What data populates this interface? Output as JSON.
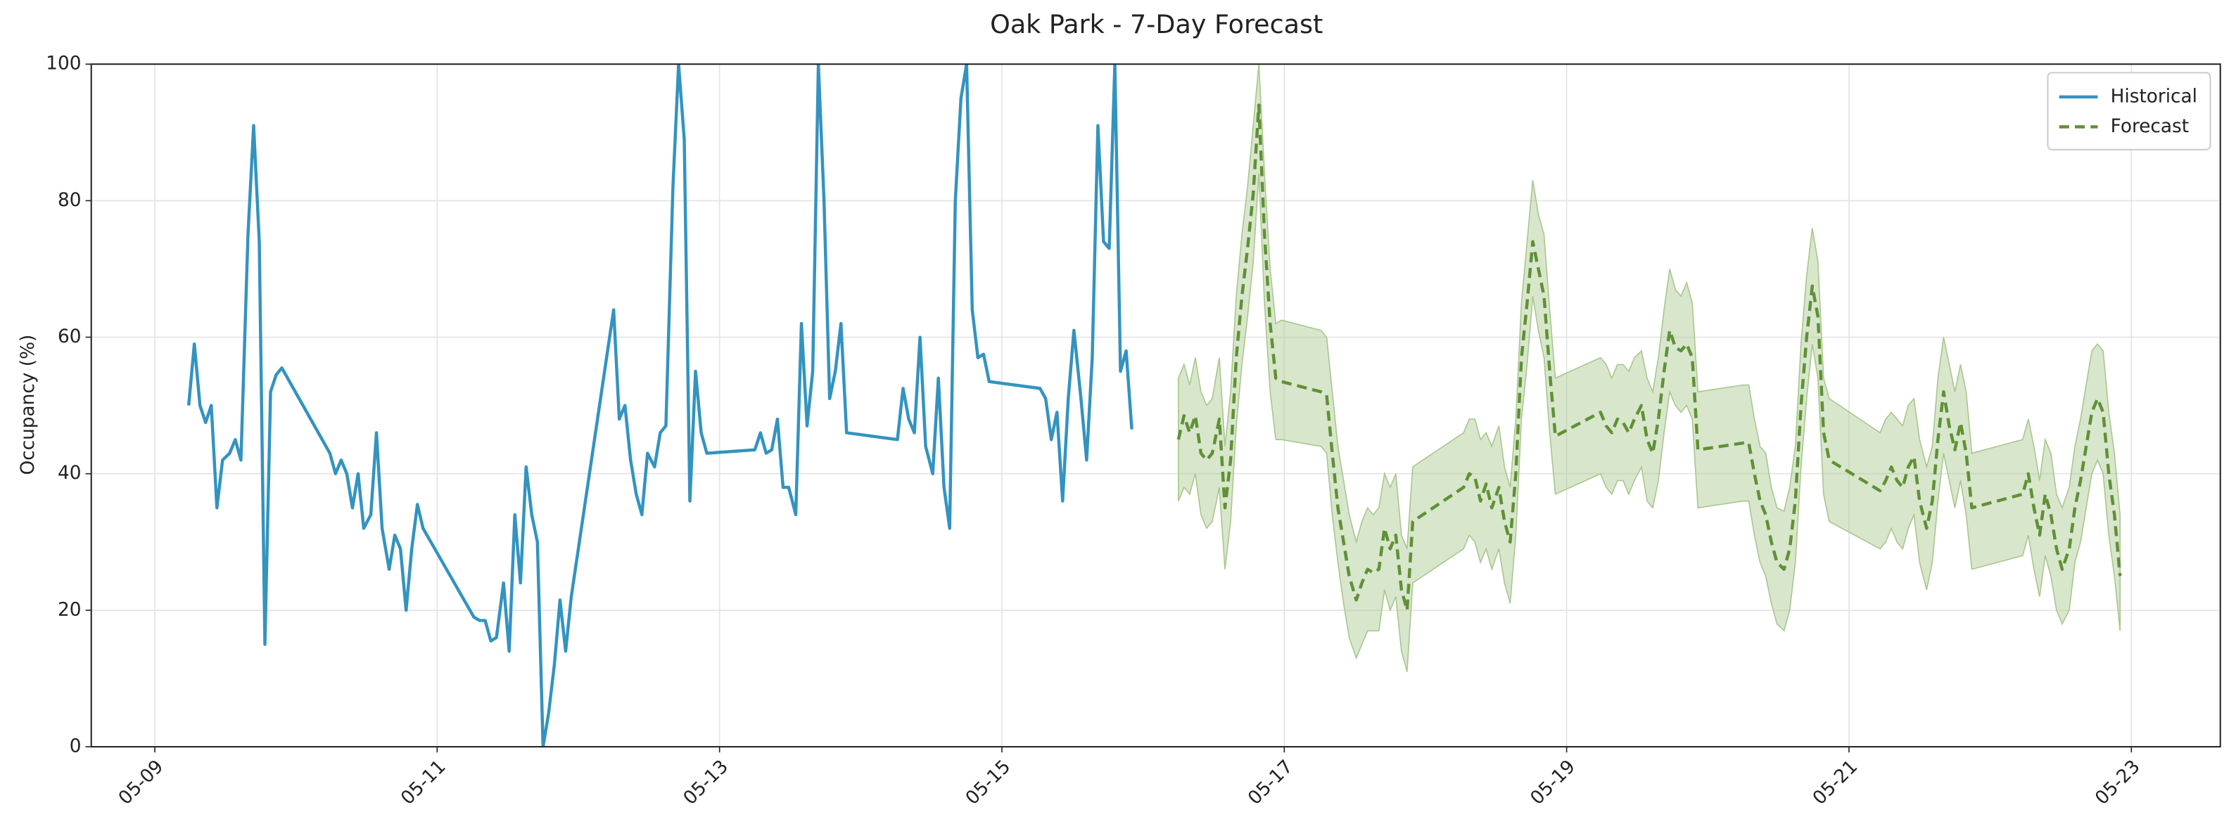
{
  "chart_data": {
    "type": "line",
    "title": "Oak Park - 7-Day Forecast",
    "y_label": "Occupancy (%)",
    "grid": true,
    "legend": "upper right",
    "xlim": [
      8.55,
      23.63
    ],
    "xticks": [
      {
        "value": 9,
        "label": "05-09"
      },
      {
        "value": 11,
        "label": "05-11"
      },
      {
        "value": 13,
        "label": "05-13"
      },
      {
        "value": 15,
        "label": "05-15"
      },
      {
        "value": 17,
        "label": "05-17"
      },
      {
        "value": 19,
        "label": "05-19"
      },
      {
        "value": 21,
        "label": "05-21"
      },
      {
        "value": 23,
        "label": "05-23"
      }
    ],
    "ylim": [
      0,
      100
    ],
    "yticks": [
      0,
      20,
      40,
      60,
      80,
      100
    ],
    "series": [
      {
        "name": "Historical",
        "color": "#3393c0",
        "linestyle": "solid",
        "x": [
          9.24,
          9.28,
          9.32,
          9.36,
          9.4,
          9.44,
          9.48,
          9.53,
          9.57,
          9.61,
          9.66,
          9.7,
          9.74,
          9.78,
          9.82,
          9.86,
          9.9,
          10.24,
          10.28,
          10.32,
          10.36,
          10.4,
          10.44,
          10.48,
          10.53,
          10.57,
          10.61,
          10.66,
          10.7,
          10.74,
          10.78,
          10.82,
          10.86,
          10.9,
          11.26,
          11.3,
          11.34,
          11.38,
          11.42,
          11.47,
          11.51,
          11.55,
          11.59,
          11.63,
          11.67,
          11.71,
          11.75,
          11.79,
          11.83,
          11.87,
          11.91,
          11.95,
          12.25,
          12.29,
          12.33,
          12.37,
          12.41,
          12.45,
          12.49,
          12.54,
          12.58,
          12.62,
          12.67,
          12.71,
          12.75,
          12.79,
          12.83,
          12.87,
          12.91,
          13.25,
          13.29,
          13.33,
          13.37,
          13.41,
          13.45,
          13.49,
          13.54,
          13.58,
          13.62,
          13.66,
          13.7,
          13.74,
          13.78,
          13.82,
          13.86,
          13.9,
          14.26,
          14.3,
          14.34,
          14.38,
          14.42,
          14.46,
          14.51,
          14.55,
          14.59,
          14.63,
          14.67,
          14.71,
          14.75,
          14.79,
          14.83,
          14.87,
          14.91,
          15.27,
          15.31,
          15.35,
          15.39,
          15.43,
          15.47,
          15.51,
          15.56,
          15.6,
          15.64,
          15.68,
          15.72,
          15.76,
          15.8,
          15.84,
          15.88,
          15.92
        ],
        "values": [
          50,
          59,
          50,
          47.5,
          50,
          35,
          42,
          43,
          45,
          42,
          75,
          91,
          74,
          15,
          52,
          54.5,
          55.5,
          43,
          40,
          42,
          40,
          35,
          40,
          32,
          34,
          46,
          32,
          26,
          31,
          29,
          20,
          29,
          35.5,
          32,
          19,
          18.5,
          18.5,
          15.5,
          16,
          24,
          14,
          34,
          24,
          41,
          34,
          30,
          0,
          5,
          12,
          21.5,
          14,
          22,
          64,
          48,
          50,
          42,
          37,
          34,
          43,
          41,
          46,
          47,
          82,
          100,
          89,
          36,
          55,
          46,
          43,
          43.5,
          46,
          43,
          43.5,
          48,
          38,
          38,
          34,
          62,
          47,
          55,
          100,
          80,
          51,
          55,
          62,
          46,
          45,
          52.5,
          48,
          46,
          60,
          44,
          40,
          54,
          38,
          32,
          80,
          95,
          100,
          64,
          57,
          57.5,
          53.5,
          52.5,
          51,
          45,
          49,
          36,
          51,
          61,
          51,
          42,
          57,
          91,
          74,
          73,
          100,
          55,
          58,
          46.5
        ]
      },
      {
        "name": "Forecast",
        "color": "#5f9135",
        "linestyle": "dashed",
        "band_color": "#a9c78e",
        "x": [
          16.25,
          16.29,
          16.33,
          16.37,
          16.41,
          16.45,
          16.49,
          16.54,
          16.58,
          16.62,
          16.66,
          16.7,
          16.74,
          16.78,
          16.82,
          16.86,
          16.9,
          16.94,
          16.98,
          17.26,
          17.3,
          17.34,
          17.38,
          17.42,
          17.46,
          17.51,
          17.55,
          17.59,
          17.63,
          17.67,
          17.71,
          17.75,
          17.79,
          17.83,
          17.87,
          17.91,
          18.27,
          18.31,
          18.35,
          18.39,
          18.43,
          18.47,
          18.52,
          18.56,
          18.6,
          18.64,
          18.68,
          18.72,
          18.76,
          18.8,
          18.84,
          18.88,
          18.92,
          19.24,
          19.28,
          19.32,
          19.36,
          19.4,
          19.44,
          19.48,
          19.53,
          19.57,
          19.61,
          19.65,
          19.69,
          19.73,
          19.77,
          19.81,
          19.85,
          19.89,
          19.93,
          20.25,
          20.29,
          20.33,
          20.37,
          20.41,
          20.45,
          20.49,
          20.54,
          20.58,
          20.62,
          20.66,
          20.7,
          20.74,
          20.78,
          20.82,
          20.86,
          21.22,
          21.26,
          21.3,
          21.34,
          21.38,
          21.42,
          21.46,
          21.5,
          21.55,
          21.59,
          21.63,
          21.67,
          21.71,
          21.75,
          21.79,
          21.83,
          21.87,
          22.23,
          22.27,
          22.31,
          22.35,
          22.39,
          22.43,
          22.47,
          22.51,
          22.56,
          22.6,
          22.64,
          22.68,
          22.72,
          22.76,
          22.8,
          22.84,
          22.88,
          22.92
        ],
        "values": [
          45,
          48.5,
          46,
          48.5,
          43,
          42,
          43,
          48,
          35,
          42,
          57,
          66,
          73,
          81,
          94,
          75,
          62,
          54,
          53.5,
          52,
          51.5,
          43,
          35,
          30,
          25,
          21.5,
          24,
          26,
          25.5,
          26,
          32,
          29,
          31,
          23,
          20,
          33,
          38,
          40,
          39.5,
          36,
          38.5,
          35,
          38,
          33,
          30,
          40,
          57,
          65,
          74,
          70,
          66,
          55,
          45.5,
          49,
          47,
          46,
          48,
          47.5,
          46,
          48,
          50,
          45,
          43,
          48,
          55,
          61,
          58.5,
          58,
          59,
          57,
          43.5,
          44.5,
          44.5,
          40,
          36,
          34,
          30,
          27,
          26,
          29,
          36,
          50,
          60,
          67.5,
          63,
          46,
          42,
          37.5,
          39,
          41,
          39,
          38,
          41,
          42.5,
          36,
          32,
          36,
          45,
          52,
          47,
          43.5,
          47.5,
          43,
          35,
          37,
          40,
          35,
          31,
          37,
          34,
          29,
          26,
          29,
          35,
          39,
          44,
          49,
          51,
          49,
          40,
          34,
          25
        ],
        "lower": [
          36,
          38,
          37,
          40,
          34,
          32,
          33,
          38,
          26,
          33,
          47,
          56,
          63,
          71,
          84,
          65,
          52,
          45,
          45,
          44,
          43,
          34,
          27,
          21,
          16,
          13,
          15,
          17,
          17,
          17,
          23,
          20,
          22,
          14,
          11,
          24,
          29,
          31,
          30,
          27,
          29,
          26,
          29,
          24,
          21,
          31,
          48,
          56,
          66,
          61,
          57,
          46,
          37,
          40,
          38,
          37,
          39,
          39,
          37,
          39,
          41,
          36,
          35,
          39,
          46,
          52,
          50,
          49,
          50,
          48,
          35,
          36,
          36,
          31,
          27,
          25,
          21,
          18,
          17,
          20,
          27,
          41,
          51,
          59,
          54,
          37,
          33,
          29,
          30,
          32,
          30,
          29,
          32,
          34,
          27,
          23,
          27,
          36,
          43,
          39,
          35,
          39,
          34,
          26,
          28,
          31,
          26,
          22,
          28,
          25,
          20,
          18,
          20,
          27,
          30,
          35,
          40,
          42,
          40,
          31,
          25,
          17
        ],
        "upper": [
          54,
          56,
          53,
          57,
          52,
          50,
          51,
          57,
          44,
          52,
          66,
          75,
          82,
          91,
          100,
          84,
          70,
          62,
          62.5,
          61,
          60,
          52,
          44,
          39,
          34,
          30,
          33,
          35,
          34,
          35,
          40,
          38,
          40,
          31,
          29,
          41,
          46,
          48,
          48,
          45,
          46,
          44,
          47,
          41,
          38,
          48,
          65,
          74,
          83,
          78,
          75,
          64,
          54,
          57,
          56,
          54,
          56,
          56,
          55,
          57,
          58,
          54,
          52,
          57,
          64,
          70,
          67,
          66,
          68,
          65,
          52,
          53,
          53,
          48,
          44,
          43,
          38,
          35,
          34.5,
          38,
          44,
          59,
          69,
          76,
          71,
          54,
          51,
          46,
          48,
          49,
          48,
          47,
          50,
          51,
          45,
          41,
          44,
          54,
          60,
          56,
          52,
          56,
          52,
          43,
          45,
          48,
          44,
          39,
          45,
          43,
          37,
          35,
          38,
          44,
          48,
          53,
          58,
          59,
          58,
          49,
          43,
          34
        ]
      }
    ]
  }
}
